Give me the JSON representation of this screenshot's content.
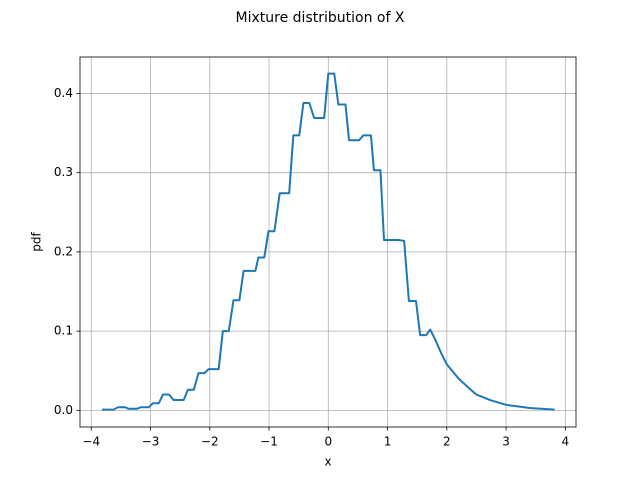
{
  "chart_data": {
    "type": "line",
    "title": "Mixture distribution of X",
    "xlabel": "x",
    "ylabel": "pdf",
    "x": [
      -3.82,
      -3.62,
      -3.55,
      -3.43,
      -3.37,
      -3.23,
      -3.16,
      -3.03,
      -2.96,
      -2.86,
      -2.79,
      -2.69,
      -2.61,
      -2.44,
      -2.37,
      -2.27,
      -2.19,
      -2.09,
      -2.02,
      -1.85,
      -1.78,
      -1.68,
      -1.6,
      -1.5,
      -1.43,
      -1.23,
      -1.18,
      -1.08,
      -1.01,
      -0.91,
      -0.82,
      -0.66,
      -0.59,
      -0.49,
      -0.42,
      -0.32,
      -0.24,
      -0.07,
      0,
      0.1,
      0.17,
      0.29,
      0.35,
      0.52,
      0.59,
      0.72,
      0.77,
      0.88,
      0.94,
      1.18,
      1.28,
      1.36,
      1.48,
      1.55,
      1.65,
      1.72,
      1.8,
      1.9,
      2.0,
      2.2,
      2.39,
      2.5,
      2.73,
      3.0,
      3.4,
      3.82
    ],
    "series": [
      {
        "name": "pdf",
        "color": "#1f77b4",
        "values": [
          0.001,
          0.001,
          0.004,
          0.004,
          0.002,
          0.002,
          0.004,
          0.004,
          0.009,
          0.009,
          0.02,
          0.02,
          0.013,
          0.013,
          0.026,
          0.026,
          0.047,
          0.047,
          0.052,
          0.052,
          0.1,
          0.1,
          0.139,
          0.139,
          0.176,
          0.176,
          0.193,
          0.193,
          0.226,
          0.226,
          0.274,
          0.274,
          0.347,
          0.347,
          0.388,
          0.388,
          0.369,
          0.369,
          0.425,
          0.425,
          0.386,
          0.386,
          0.341,
          0.341,
          0.347,
          0.347,
          0.303,
          0.303,
          0.215,
          0.215,
          0.214,
          0.138,
          0.138,
          0.095,
          0.095,
          0.102,
          0.09,
          0.073,
          0.058,
          0.04,
          0.027,
          0.02,
          0.013,
          0.007,
          0.003,
          0.001
        ]
      }
    ],
    "xlim": [
      -4.19,
      4.18
    ],
    "ylim": [
      -0.021,
      0.446
    ],
    "xticks": [
      {
        "value": -4,
        "label": "−4"
      },
      {
        "value": -3,
        "label": "−3"
      },
      {
        "value": -2,
        "label": "−2"
      },
      {
        "value": -1,
        "label": "−1"
      },
      0,
      1,
      2,
      3,
      4
    ],
    "yticks": [
      {
        "value": 0,
        "label": "0.0"
      },
      0.1,
      0.2,
      0.3,
      0.4
    ],
    "grid": true
  }
}
